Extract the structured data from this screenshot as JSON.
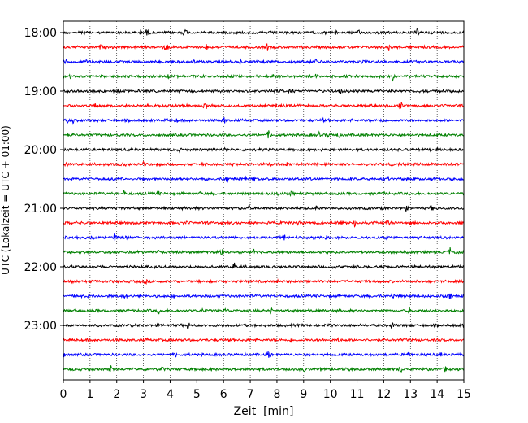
{
  "chart_data": {
    "type": "line",
    "title": "",
    "xlabel": "Zeit  [min]",
    "ylabel": "UTC (Lokalzeit = UTC + 01:00)",
    "xlim": [
      0,
      15
    ],
    "x_ticks": [
      "0",
      "1",
      "2",
      "3",
      "4",
      "5",
      "6",
      "7",
      "8",
      "9",
      "10",
      "11",
      "12",
      "13",
      "14",
      "15"
    ],
    "y_ticks": [
      "18:00",
      "19:00",
      "20:00",
      "21:00",
      "22:00",
      "23:00"
    ],
    "grid": "vertical dotted at each minute",
    "trace_interval_minutes": 15,
    "traces_start": "18:00",
    "traces_end": "23:45",
    "trace_colors": [
      "#000000",
      "#ff0000",
      "#0000ff",
      "#008000"
    ],
    "series": [
      {
        "start": "18:00",
        "color": "#000000"
      },
      {
        "start": "18:15",
        "color": "#ff0000"
      },
      {
        "start": "18:30",
        "color": "#0000ff"
      },
      {
        "start": "18:45",
        "color": "#008000"
      },
      {
        "start": "19:00",
        "color": "#000000"
      },
      {
        "start": "19:15",
        "color": "#ff0000"
      },
      {
        "start": "19:30",
        "color": "#0000ff"
      },
      {
        "start": "19:45",
        "color": "#008000"
      },
      {
        "start": "20:00",
        "color": "#000000"
      },
      {
        "start": "20:15",
        "color": "#ff0000"
      },
      {
        "start": "20:30",
        "color": "#0000ff"
      },
      {
        "start": "20:45",
        "color": "#008000"
      },
      {
        "start": "21:00",
        "color": "#000000"
      },
      {
        "start": "21:15",
        "color": "#ff0000"
      },
      {
        "start": "21:30",
        "color": "#0000ff"
      },
      {
        "start": "21:45",
        "color": "#008000"
      },
      {
        "start": "22:00",
        "color": "#000000"
      },
      {
        "start": "22:15",
        "color": "#ff0000"
      },
      {
        "start": "22:30",
        "color": "#0000ff"
      },
      {
        "start": "22:45",
        "color": "#008000"
      },
      {
        "start": "23:00",
        "color": "#000000"
      },
      {
        "start": "23:15",
        "color": "#ff0000"
      },
      {
        "start": "23:30",
        "color": "#0000ff"
      },
      {
        "start": "23:45",
        "color": "#008000"
      }
    ]
  }
}
